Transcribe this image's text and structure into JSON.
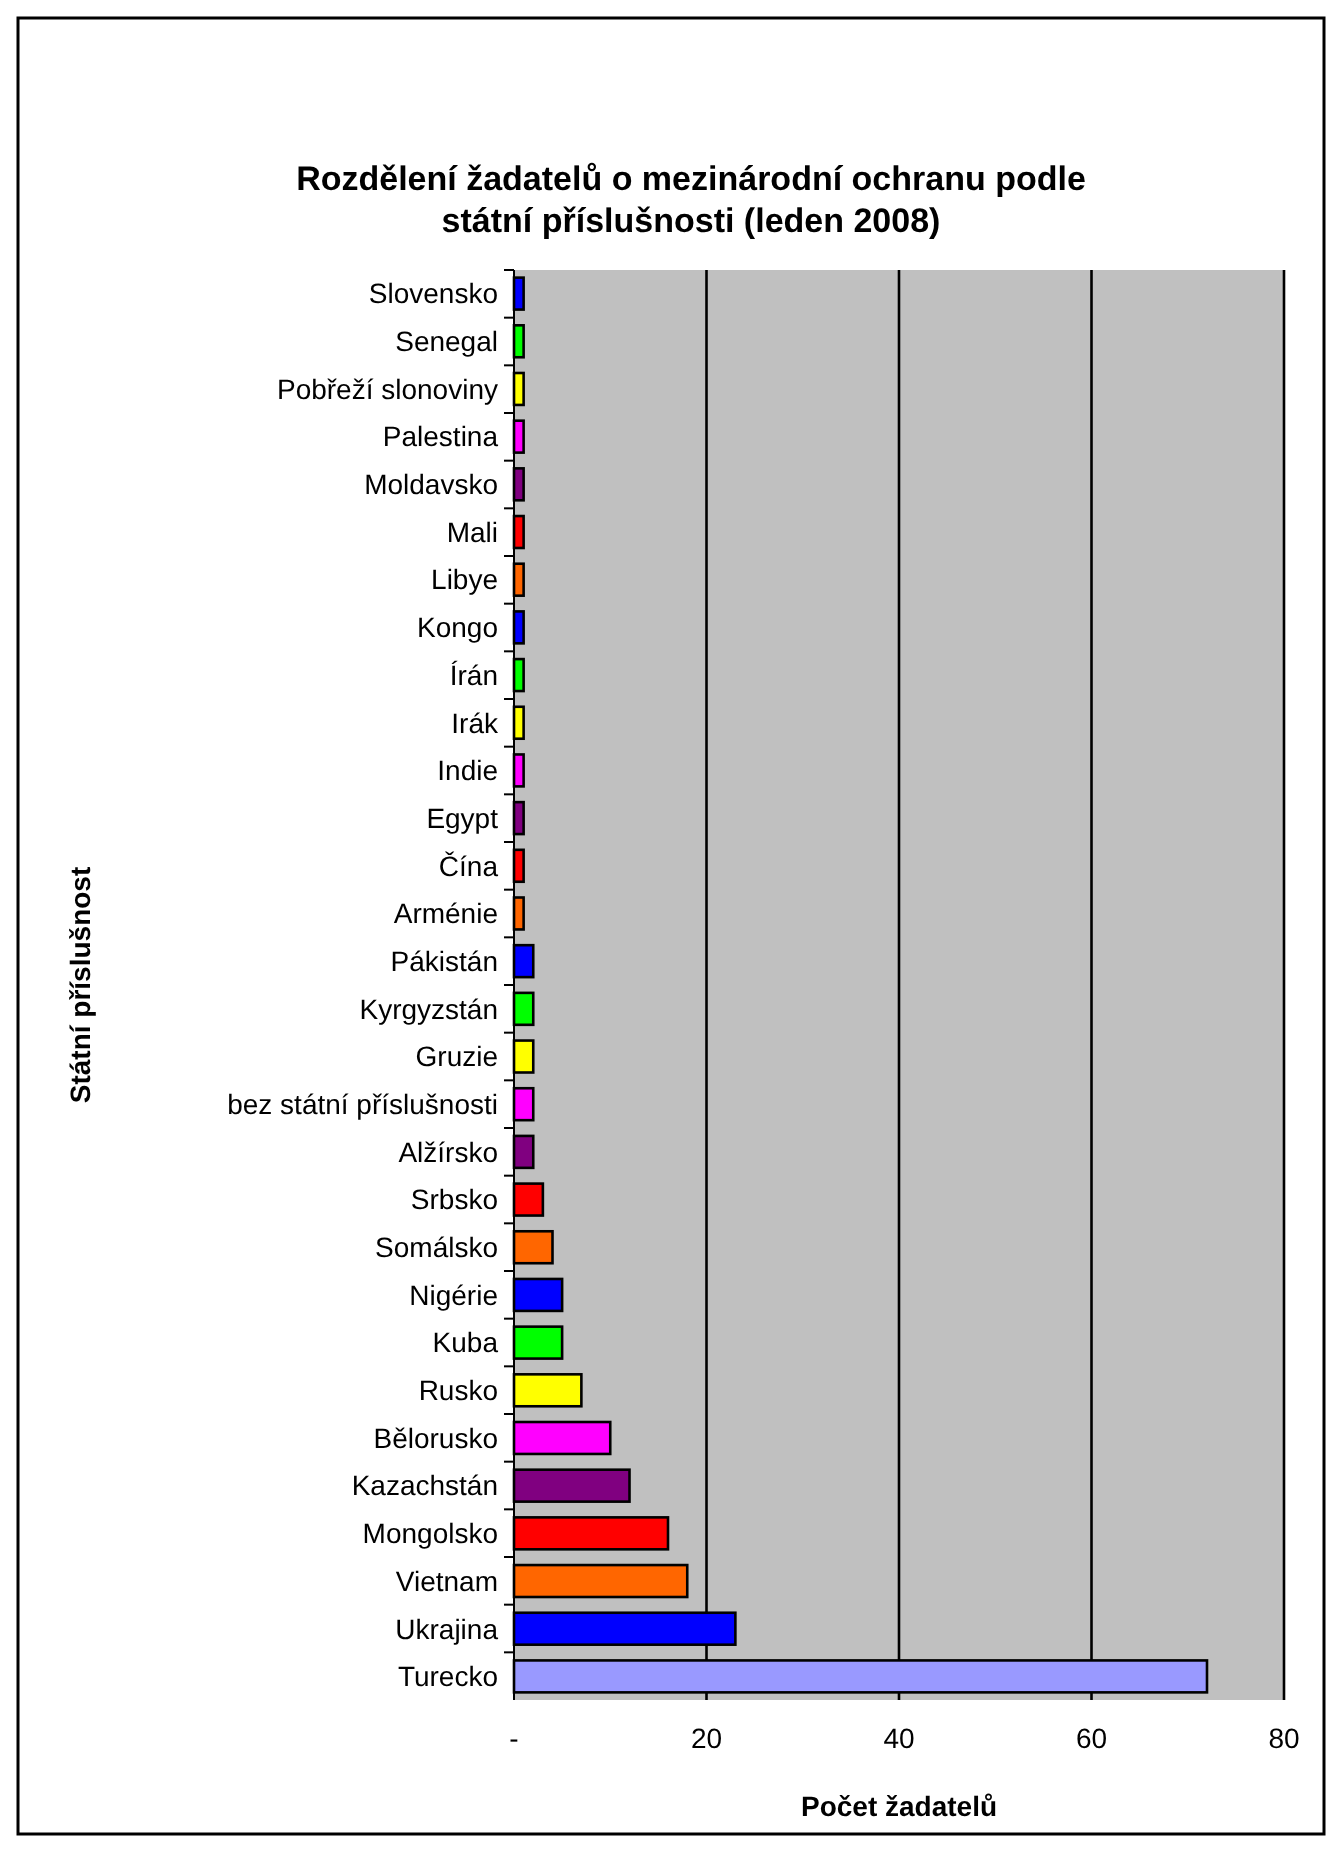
{
  "chart_data": {
    "type": "bar",
    "orientation": "horizontal",
    "title": "Rozdělení žadatelů o mezinárodní ochranu podle státní příslušnosti (leden 2008)",
    "xlabel": "Počet žadatelů",
    "ylabel": "Státní příslušnost",
    "categories": [
      "Slovensko",
      "Senegal",
      "Pobřeží slonoviny",
      "Palestina",
      "Moldavsko",
      "Mali",
      "Libye",
      "Kongo",
      "Írán",
      "Irák",
      "Indie",
      "Egypt",
      "Čína",
      "Arménie",
      "Pákistán",
      "Kyrgyzstán",
      "Gruzie",
      "bez státní příslušnosti",
      "Alžírsko",
      "Srbsko",
      "Somálsko",
      "Nigérie",
      "Kuba",
      "Rusko",
      "Bělorusko",
      "Kazachstán",
      "Mongolsko",
      "Vietnam",
      "Ukrajina",
      "Turecko"
    ],
    "values": [
      1,
      1,
      1,
      1,
      1,
      1,
      1,
      1,
      1,
      1,
      1,
      1,
      1,
      1,
      2,
      2,
      2,
      2,
      2,
      3,
      4,
      5,
      5,
      7,
      10,
      12,
      16,
      18,
      23,
      72
    ],
    "colors": [
      "#0000ff",
      "#00ff00",
      "#ffff00",
      "#ff00ff",
      "#800080",
      "#ff0000",
      "#ff6600",
      "#0000ff",
      "#00ff00",
      "#ffff00",
      "#ff00ff",
      "#800080",
      "#ff0000",
      "#ff6600",
      "#0000ff",
      "#00ff00",
      "#ffff00",
      "#ff00ff",
      "#800080",
      "#ff0000",
      "#ff6600",
      "#0000ff",
      "#00ff00",
      "#ffff00",
      "#ff00ff",
      "#800080",
      "#ff0000",
      "#ff6600",
      "#0000ff",
      "#9999ff"
    ],
    "xlim": [
      0,
      80
    ],
    "xticks": [
      {
        "value": 0,
        "label": "-"
      },
      20,
      40,
      60,
      80
    ],
    "grid": "x"
  }
}
